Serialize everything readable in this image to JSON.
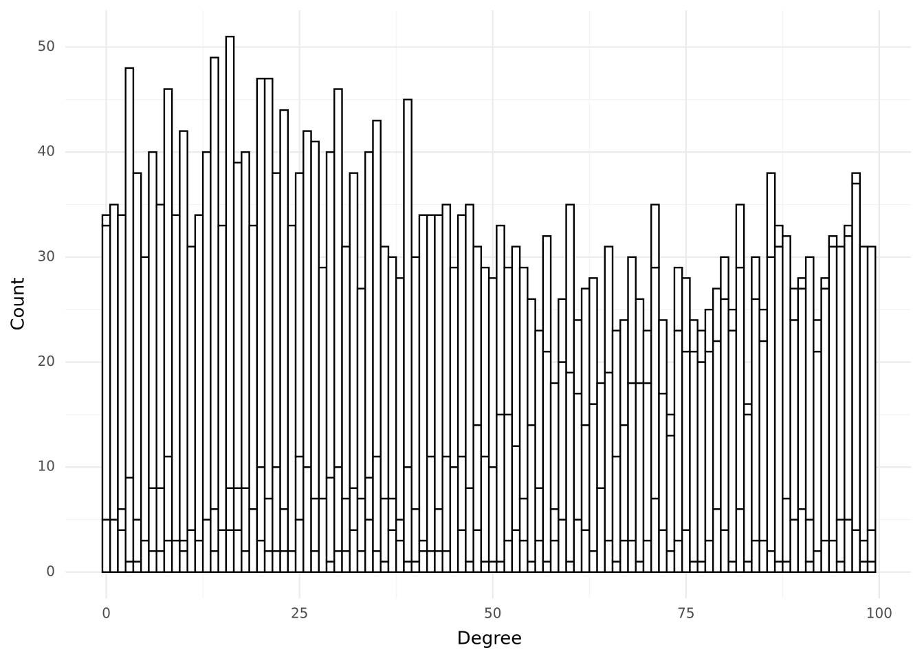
{
  "chart_data": {
    "type": "histogram",
    "x_label": "Degree",
    "y_label": "Count",
    "bins": [
      -0.5,
      0.5,
      1.5,
      2.5,
      3.5,
      4.5,
      5.5,
      6.5,
      7.5,
      8.5,
      9.5,
      10.5,
      11.5,
      12.5,
      13.5,
      14.5,
      15.5,
      16.5,
      17.5,
      18.5,
      19.5,
      20.5,
      21.5,
      22.5,
      23.5,
      24.5,
      25.5,
      26.5,
      27.5,
      28.5,
      29.5,
      30.5,
      31.5,
      32.5,
      33.5,
      34.5,
      35.5,
      36.5,
      37.5,
      38.5,
      39.5,
      40.5,
      41.5,
      42.5,
      43.5,
      44.5,
      45.5,
      46.5,
      47.5,
      48.5,
      49.5,
      50.5,
      51.5,
      52.5,
      53.5,
      54.5,
      55.5,
      56.5,
      57.5,
      58.5,
      59.5,
      60.5,
      61.5,
      62.5,
      63.5,
      64.5,
      65.5,
      66.5,
      67.5,
      68.5,
      69.5,
      70.5,
      71.5,
      72.5,
      73.5,
      74.5,
      75.5,
      76.5,
      77.5,
      78.5,
      79.5,
      80.5,
      81.5,
      82.5,
      83.5,
      84.5,
      85.5,
      86.5,
      87.5,
      88.5,
      89.5,
      90.5,
      91.5,
      92.5,
      93.5,
      94.5,
      95.5,
      96.5,
      97.5,
      98.5,
      99.5
    ],
    "series": [
      {
        "color": "#ffffff",
        "edgecolor": "#000000",
        "values": [
          5,
          5,
          4,
          1,
          1,
          3,
          2,
          2,
          3,
          3,
          2,
          4,
          3,
          5,
          2,
          4,
          4,
          4,
          2,
          6,
          3,
          2,
          2,
          2,
          2,
          5,
          10,
          2,
          7,
          1,
          2,
          2,
          4,
          2,
          5,
          2,
          1,
          4,
          3,
          1,
          1,
          2,
          2,
          2,
          2,
          10,
          4,
          1,
          4,
          1,
          1,
          1,
          3,
          4,
          3,
          1,
          3,
          1,
          3,
          5,
          1,
          5,
          4,
          2,
          8,
          3,
          1,
          3,
          3,
          1,
          3,
          7,
          4,
          2,
          3,
          4,
          1,
          1,
          3,
          6,
          4,
          1,
          6,
          1,
          3,
          3,
          2,
          1,
          1,
          5,
          6,
          1,
          2,
          3,
          3,
          1,
          5,
          4,
          1,
          1
        ]
      },
      {
        "color": "#ffffff",
        "edgecolor": "#000000",
        "values": [
          28,
          0,
          2,
          8,
          4,
          0,
          6,
          6,
          8,
          0,
          1,
          0,
          0,
          0,
          4,
          0,
          4,
          4,
          6,
          0,
          7,
          5,
          8,
          4,
          0,
          6,
          0,
          5,
          0,
          8,
          8,
          5,
          4,
          5,
          4,
          9,
          6,
          3,
          2,
          9,
          5,
          1,
          9,
          4,
          9,
          0,
          7,
          7,
          10,
          10,
          9,
          14,
          12,
          8,
          4,
          13,
          5,
          20,
          3,
          15,
          18,
          12,
          10,
          14,
          0,
          16,
          10,
          11,
          15,
          17,
          15,
          22,
          13,
          11,
          20,
          17,
          20,
          19,
          18,
          16,
          22,
          22,
          23,
          14,
          23,
          19,
          28,
          30,
          6,
          19,
          21,
          4,
          19,
          24,
          28,
          4,
          27,
          33,
          2,
          3
        ]
      },
      {
        "color": "#ffffff",
        "edgecolor": "#000000",
        "values": [
          1,
          30,
          28,
          39,
          33,
          27,
          32,
          27,
          35,
          31,
          39,
          27,
          31,
          35,
          43,
          29,
          43,
          31,
          32,
          27,
          37,
          40,
          28,
          38,
          31,
          27,
          32,
          34,
          22,
          31,
          36,
          24,
          30,
          20,
          31,
          32,
          24,
          23,
          23,
          35,
          24,
          31,
          23,
          28,
          24,
          19,
          23,
          27,
          17,
          18,
          18,
          18,
          14,
          19,
          22,
          12,
          15,
          11,
          12,
          6,
          16,
          7,
          13,
          12,
          10,
          12,
          12,
          10,
          12,
          8,
          5,
          6,
          7,
          2,
          6,
          7,
          3,
          3,
          4,
          5,
          4,
          2,
          6,
          1,
          4,
          3,
          8,
          2,
          25,
          3,
          1,
          25,
          3,
          1,
          1,
          26,
          1,
          1,
          28,
          27
        ]
      }
    ],
    "xlim": [
      -5.3,
      104.1
    ],
    "xticks": [
      0,
      25,
      50,
      75,
      100
    ],
    "x_minor_ticks": [
      12.5,
      37.5,
      62.5,
      87.5
    ],
    "ylim": [
      -2.5,
      53.5
    ],
    "yticks": [
      0,
      10,
      20,
      30,
      40,
      50
    ],
    "y_minor_ticks": [
      5,
      15,
      25,
      35,
      45
    ],
    "grid": true
  }
}
